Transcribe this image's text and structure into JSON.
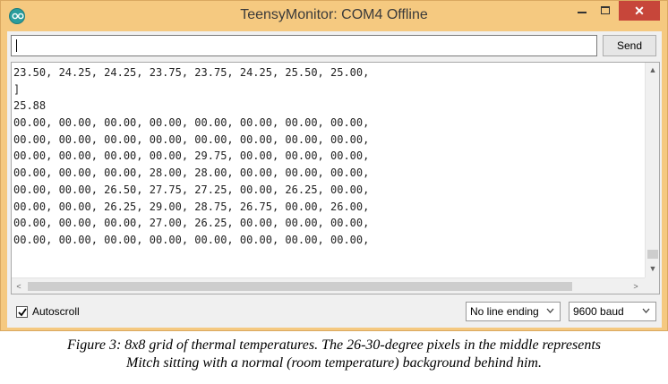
{
  "window": {
    "title": "TeensyMonitor: COM4 Offline",
    "close_glyph": "✕",
    "accent_title_bar": "#f5c980",
    "close_button_color": "#c7463a"
  },
  "toolbar": {
    "input_value": "",
    "send_label": "Send"
  },
  "output": {
    "lines": [
      "23.50, 24.25, 24.25, 23.75, 23.75, 24.25, 25.50, 25.00,",
      "]",
      "25.88",
      "00.00, 00.00, 00.00, 00.00, 00.00, 00.00, 00.00, 00.00,",
      "00.00, 00.00, 00.00, 00.00, 00.00, 00.00, 00.00, 00.00,",
      "00.00, 00.00, 00.00, 00.00, 29.75, 00.00, 00.00, 00.00,",
      "00.00, 00.00, 00.00, 28.00, 28.00, 00.00, 00.00, 00.00,",
      "00.00, 00.00, 26.50, 27.75, 27.25, 00.00, 26.25, 00.00,",
      "00.00, 00.00, 26.25, 29.00, 28.75, 26.75, 00.00, 26.00,",
      "00.00, 00.00, 00.00, 27.00, 26.25, 00.00, 00.00, 00.00,",
      "00.00, 00.00, 00.00, 00.00, 00.00, 00.00, 00.00, 00.00,"
    ]
  },
  "scrollbar": {
    "up_glyph": "▲",
    "down_glyph": "▼",
    "left_glyph": "<",
    "right_glyph": ">"
  },
  "status": {
    "autoscroll_label": "Autoscroll",
    "autoscroll_checked": true,
    "line_ending_value": "No line ending",
    "baud_value": "9600 baud"
  },
  "caption": {
    "line1": "Figure 3: 8x8 grid of thermal temperatures.  The 26-30-degree pixels in the middle represents",
    "line2": "Mitch sitting with a normal (room temperature) background behind him."
  },
  "icons": {
    "app": "arduino-infinity-icon",
    "minimize": "minimize-icon",
    "maximize": "maximize-icon",
    "close": "close-icon",
    "check": "checkmark-icon",
    "dropdown": "chevron-down-icon"
  }
}
